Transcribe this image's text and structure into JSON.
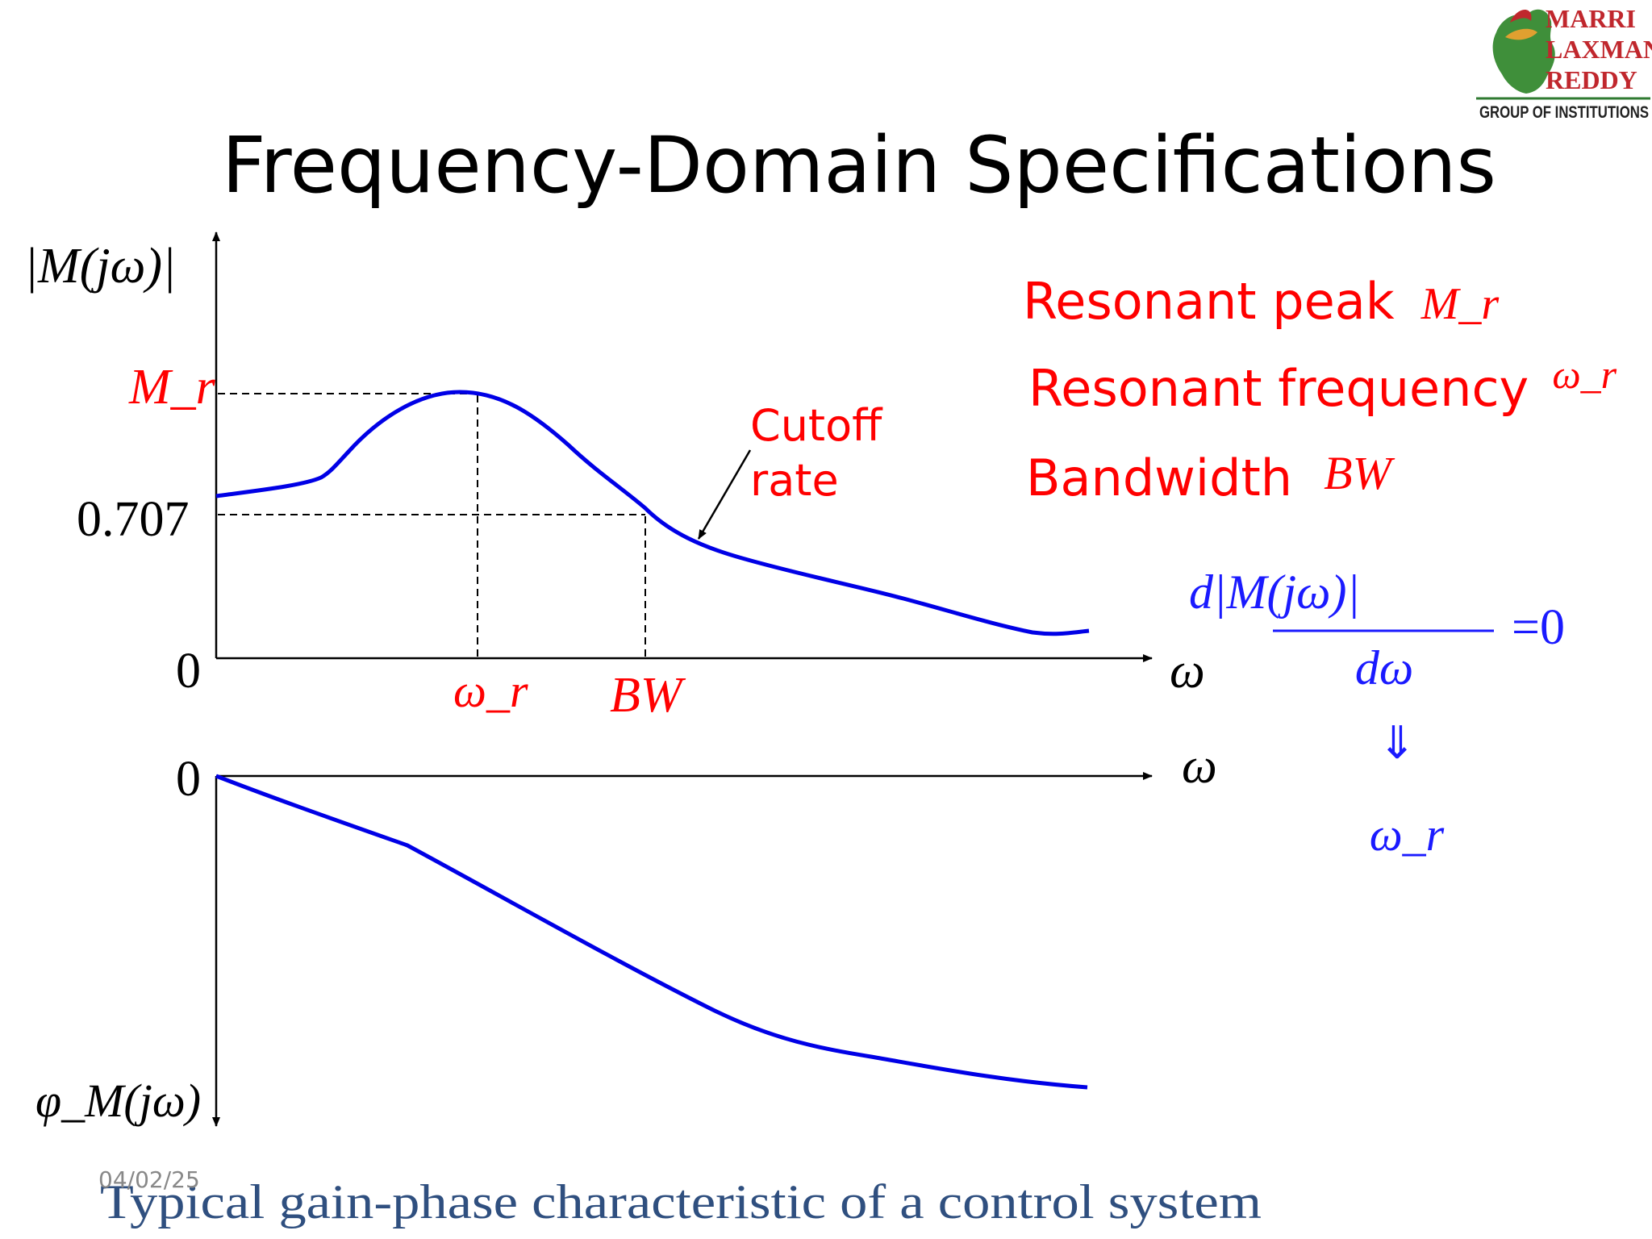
{
  "logo": {
    "line1": "MARRI",
    "line2": "LAXMAN",
    "line3": "REDDY",
    "tagline": "GROUP OF INSTITUTIONS"
  },
  "title": "Frequency-Domain Specifications",
  "gain_plot": {
    "y_axis_label": "|M(jω)|",
    "y_tick_mr": "M_r",
    "y_tick_0707": "0.707",
    "y_tick_zero": "0",
    "x_axis_label": "ω",
    "x_tick_wr": "ω_r",
    "x_tick_bw": "BW",
    "cutoff_label_line1": "Cutoff",
    "cutoff_label_line2": "rate"
  },
  "phase_plot": {
    "y_tick_zero": "0",
    "x_axis_label": "ω",
    "y_axis_label": "φ_M(jω)"
  },
  "specs": [
    {
      "label": "Resonant peak",
      "symbol": "M_r"
    },
    {
      "label": "Resonant frequency",
      "symbol": "ω_r"
    },
    {
      "label": "Bandwidth",
      "symbol": "BW"
    }
  ],
  "equation": {
    "numerator": "d|M(jω)|",
    "denominator": "dω",
    "rhs": "=0",
    "arrow": "⇓",
    "result": "ω_r"
  },
  "footer": {
    "date": "04/02/25",
    "caption": "Typical gain-phase characteristic of a control system"
  },
  "colors": {
    "curve": "#0000e6",
    "highlight": "#ff0000",
    "equation": "#1a1aff",
    "caption": "#2f4f7f",
    "logo_red": "#c0272d",
    "logo_green": "#2f7a31"
  }
}
